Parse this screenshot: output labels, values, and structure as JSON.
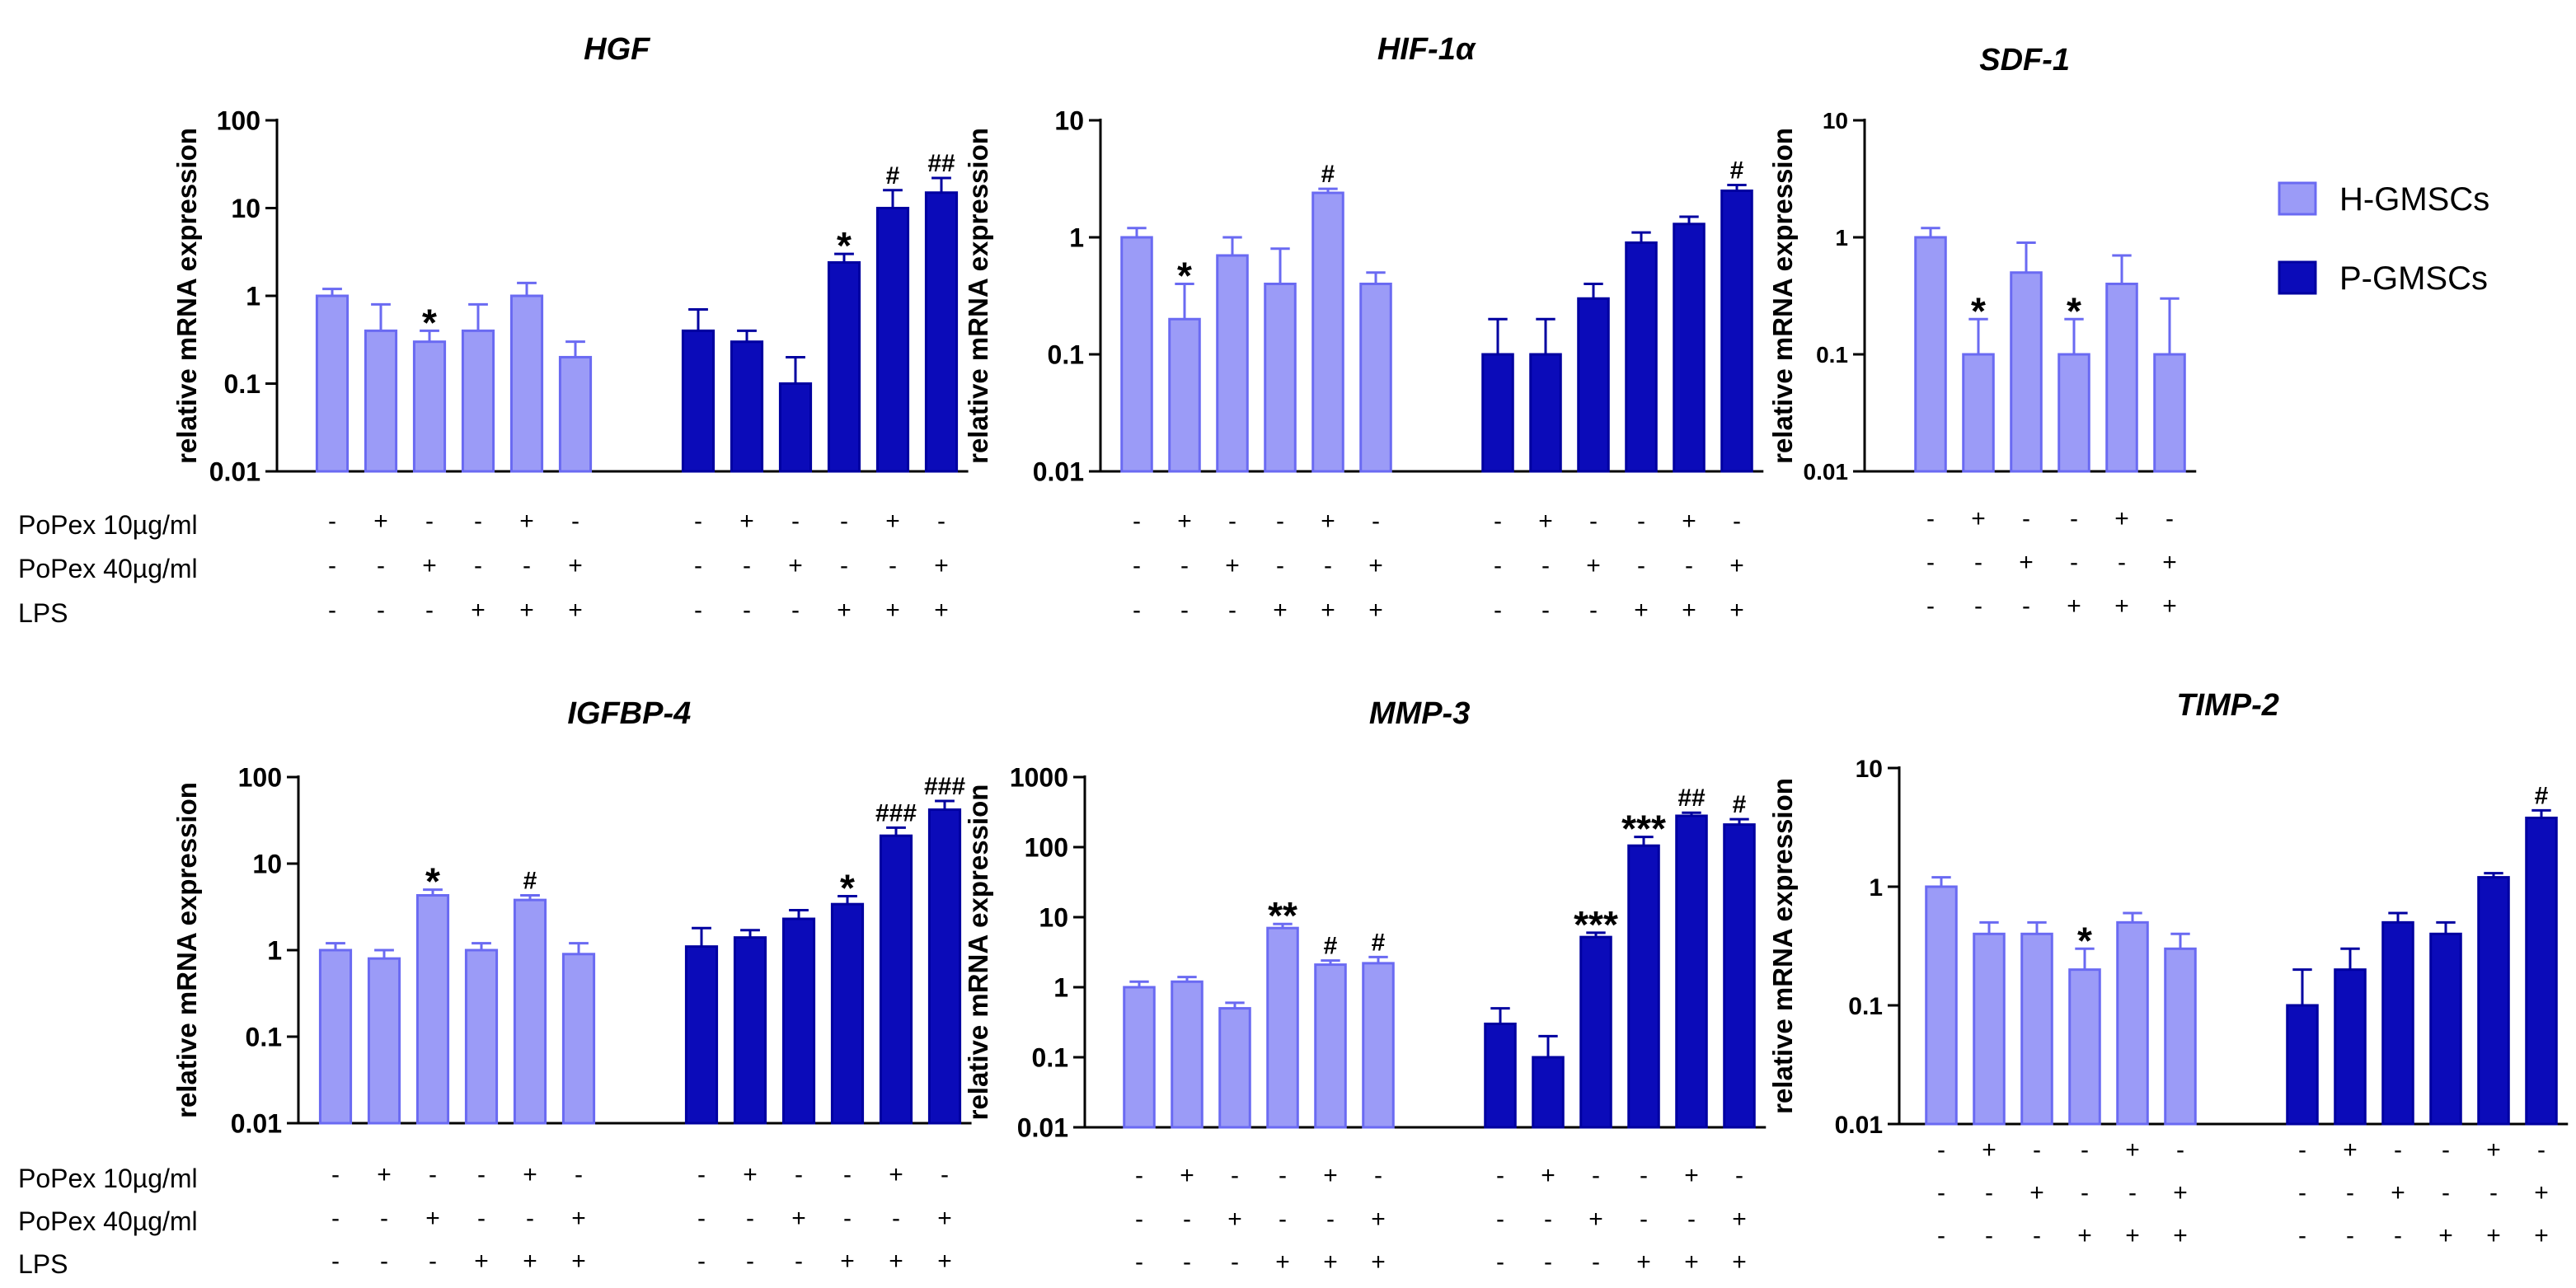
{
  "colors": {
    "h": "#9b9bf7",
    "h_edge": "#6a6af2",
    "p": "#0b0bb9",
    "p_edge": "#0000a0",
    "text": "#000000"
  },
  "condition_labels": [
    "PoPex 10µg/ml",
    "PoPex 40µg/ml",
    "LPS"
  ],
  "legend": [
    "H-GMSCs",
    "P-GMSCs"
  ],
  "chart_data": [
    {
      "type": "bar",
      "title": "HGF",
      "ylabel": "relative mRNA expression",
      "scale": "log",
      "ylim": [
        0.01,
        100
      ],
      "yticks": [
        "0.01",
        "0.1",
        "1",
        "10",
        "100"
      ],
      "signs": [
        [
          "-",
          "+",
          "-",
          "-",
          "+",
          "-"
        ],
        [
          "-",
          "-",
          "+",
          "-",
          "-",
          "+"
        ],
        [
          "-",
          "-",
          "-",
          "+",
          "+",
          "+"
        ]
      ],
      "series": [
        {
          "name": "H-GMSCs",
          "values": [
            1.0,
            0.4,
            0.3,
            0.4,
            1.0,
            0.2
          ],
          "errors": [
            1.2,
            0.8,
            0.4,
            0.8,
            1.4,
            0.3
          ],
          "annotations": [
            "",
            "",
            "*",
            "",
            "",
            ""
          ]
        },
        {
          "name": "P-GMSCs",
          "values": [
            0.4,
            0.3,
            0.1,
            2.4,
            10,
            15
          ],
          "errors": [
            0.7,
            0.4,
            0.2,
            3.0,
            16,
            22
          ],
          "annotations": [
            "",
            "",
            "",
            "*",
            "#",
            "##"
          ]
        }
      ]
    },
    {
      "type": "bar",
      "title": "HIF-1α",
      "ylabel": "relative mRNA expression",
      "scale": "log",
      "ylim": [
        0.01,
        10
      ],
      "yticks": [
        "0.01",
        "0.1",
        "1",
        "10"
      ],
      "signs": [
        [
          "-",
          "+",
          "-",
          "-",
          "+",
          "-"
        ],
        [
          "-",
          "-",
          "+",
          "-",
          "-",
          "+"
        ],
        [
          "-",
          "-",
          "-",
          "+",
          "+",
          "+"
        ]
      ],
      "series": [
        {
          "name": "H-GMSCs",
          "values": [
            1.0,
            0.2,
            0.7,
            0.4,
            2.4,
            0.4
          ],
          "errors": [
            1.2,
            0.4,
            1.0,
            0.8,
            2.6,
            0.5
          ],
          "annotations": [
            "",
            "*",
            "",
            "",
            "#",
            ""
          ]
        },
        {
          "name": "P-GMSCs",
          "values": [
            0.1,
            0.1,
            0.3,
            0.9,
            1.3,
            2.5
          ],
          "errors": [
            0.2,
            0.2,
            0.4,
            1.1,
            1.5,
            2.8
          ],
          "annotations": [
            "",
            "",
            "",
            "",
            "",
            "#"
          ]
        }
      ]
    },
    {
      "type": "bar",
      "title": "SDF-1",
      "ylabel": "relative mRNA expression",
      "scale": "log",
      "ylim": [
        0.01,
        10
      ],
      "yticks": [
        "0.01",
        "0.1",
        "1",
        "10"
      ],
      "signs": [
        [
          "-",
          "+",
          "-",
          "-",
          "+",
          "-"
        ],
        [
          "-",
          "-",
          "+",
          "-",
          "-",
          "+"
        ],
        [
          "-",
          "-",
          "-",
          "+",
          "+",
          "+"
        ]
      ],
      "series": [
        {
          "name": "H-GMSCs",
          "values": [
            1.0,
            0.1,
            0.5,
            0.1,
            0.4,
            0.1
          ],
          "errors": [
            1.2,
            0.2,
            0.9,
            0.2,
            0.7,
            0.3
          ],
          "annotations": [
            "",
            "*",
            "",
            "*",
            "",
            ""
          ]
        }
      ]
    },
    {
      "type": "bar",
      "title": "IGFBP-4",
      "ylabel": "relative mRNA expression",
      "scale": "log",
      "ylim": [
        0.01,
        100
      ],
      "yticks": [
        "0.01",
        "0.1",
        "1",
        "10",
        "100"
      ],
      "signs": [
        [
          "-",
          "+",
          "-",
          "-",
          "+",
          "-"
        ],
        [
          "-",
          "-",
          "+",
          "-",
          "-",
          "+"
        ],
        [
          "-",
          "-",
          "-",
          "+",
          "+",
          "+"
        ]
      ],
      "series": [
        {
          "name": "H-GMSCs",
          "values": [
            1.0,
            0.8,
            4.3,
            1.0,
            3.8,
            0.9
          ],
          "errors": [
            1.2,
            1.0,
            5.0,
            1.2,
            4.3,
            1.2
          ],
          "annotations": [
            "",
            "",
            "*",
            "",
            "#",
            ""
          ]
        },
        {
          "name": "P-GMSCs",
          "values": [
            1.1,
            1.4,
            2.3,
            3.4,
            21,
            42
          ],
          "errors": [
            1.8,
            1.7,
            2.9,
            4.2,
            26,
            53
          ],
          "annotations": [
            "",
            "",
            "",
            "*",
            "###",
            "###"
          ]
        }
      ]
    },
    {
      "type": "bar",
      "title": "MMP-3",
      "ylabel": "relative mRNA expression",
      "scale": "log",
      "ylim": [
        0.01,
        1000
      ],
      "yticks": [
        "0.01",
        "0.1",
        "1",
        "10",
        "100",
        "1000"
      ],
      "signs": [
        [
          "-",
          "+",
          "-",
          "-",
          "+",
          "-"
        ],
        [
          "-",
          "-",
          "+",
          "-",
          "-",
          "+"
        ],
        [
          "-",
          "-",
          "-",
          "+",
          "+",
          "+"
        ]
      ],
      "series": [
        {
          "name": "H-GMSCs",
          "values": [
            1.0,
            1.2,
            0.5,
            7.0,
            2.1,
            2.2
          ],
          "errors": [
            1.2,
            1.4,
            0.6,
            8.0,
            2.4,
            2.7
          ],
          "annotations": [
            "",
            "",
            "",
            "**",
            "#",
            "#"
          ]
        },
        {
          "name": "P-GMSCs",
          "values": [
            0.3,
            0.1,
            5.2,
            105,
            280,
            210
          ],
          "errors": [
            0.5,
            0.2,
            6.0,
            140,
            310,
            250
          ],
          "annotations": [
            "",
            "",
            "***",
            "***",
            "##",
            "#"
          ]
        }
      ]
    },
    {
      "type": "bar",
      "title": "TIMP-2",
      "ylabel": "relative mRNA expression",
      "scale": "log",
      "ylim": [
        0.01,
        10
      ],
      "yticks": [
        "0.01",
        "0.1",
        "1",
        "10"
      ],
      "signs": [
        [
          "-",
          "+",
          "-",
          "-",
          "+",
          "-"
        ],
        [
          "-",
          "-",
          "+",
          "-",
          "-",
          "+"
        ],
        [
          "-",
          "-",
          "-",
          "+",
          "+",
          "+"
        ]
      ],
      "series": [
        {
          "name": "H-GMSCs",
          "values": [
            1.0,
            0.4,
            0.4,
            0.2,
            0.5,
            0.3
          ],
          "errors": [
            1.2,
            0.5,
            0.5,
            0.3,
            0.6,
            0.4
          ],
          "annotations": [
            "",
            "",
            "",
            "*",
            "",
            ""
          ]
        },
        {
          "name": "P-GMSCs",
          "values": [
            0.1,
            0.2,
            0.5,
            0.4,
            1.2,
            3.8
          ],
          "errors": [
            0.2,
            0.3,
            0.6,
            0.5,
            1.3,
            4.4
          ],
          "annotations": [
            "",
            "",
            "",
            "",
            "",
            "#"
          ]
        }
      ]
    }
  ]
}
